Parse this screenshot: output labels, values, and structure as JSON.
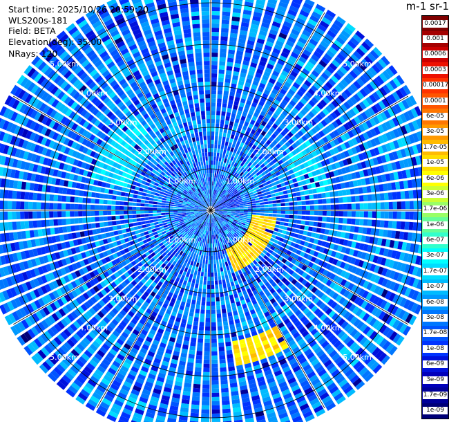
{
  "info": {
    "start_time": "Start time: 2025/10/26 20:59:20",
    "instrument": "WLS200s-181",
    "field": "Field: BETA",
    "elevation": "Elevation(deg): 35.00",
    "nrays": "NRays: 120"
  },
  "colorbar": {
    "title": "m-1 sr-1",
    "labels": [
      "0.0017",
      "0.001",
      "0.0006",
      "0.0003",
      "0.00017",
      "0.0001",
      "6e-05",
      "3e-05",
      "1.7e-05",
      "1e-05",
      "6e-06",
      "3e-06",
      "1.7e-06",
      "1e-06",
      "6e-07",
      "3e-07",
      "1.7e-07",
      "1e-07",
      "6e-08",
      "3e-08",
      "1.7e-08",
      "1e-08",
      "6e-09",
      "3e-09",
      "1.7e-09",
      "1e-09"
    ],
    "colors": [
      "#7f0000",
      "#a50000",
      "#cc0000",
      "#ee1100",
      "#ff3300",
      "#ff5500",
      "#ff7700",
      "#ff9900",
      "#ffbb00",
      "#ffdd00",
      "#ffff00",
      "#ccff33",
      "#99ff66",
      "#66ff99",
      "#33ffcc",
      "#00ffff",
      "#00ddff",
      "#00bbff",
      "#0099ff",
      "#0077ff",
      "#0055ff",
      "#0033ff",
      "#0011dd",
      "#0000bb",
      "#000099",
      "#000077"
    ]
  },
  "chart_data": {
    "type": "heatmap",
    "projection": "polar-ppi",
    "field": "BETA",
    "elevation_deg": 35.0,
    "nrays": 120,
    "range_unit": "km",
    "max_range_km": 5.6,
    "range_rings_km": [
      1,
      2,
      3,
      4,
      5
    ],
    "ring_labels": [
      "1.00km",
      "2.00km",
      "3.00km",
      "4.00km",
      "5.00km"
    ],
    "spoke_angles_deg": [
      0,
      30,
      60,
      90,
      120,
      150,
      180,
      210,
      240,
      270,
      300,
      330
    ],
    "color_scale": "log",
    "vmin": 1e-09,
    "vmax": 0.0017,
    "background_level": 3e-08,
    "features": [
      {
        "kind": "aerosol-arc",
        "azimuth_deg": [
          55,
          80
        ],
        "range_km": [
          2.2,
          2.9
        ],
        "value": 1.7e-07
      },
      {
        "kind": "aerosol-arc",
        "azimuth_deg": [
          285,
          320
        ],
        "range_km": [
          2.0,
          3.0
        ],
        "value": 1.7e-07
      },
      {
        "kind": "aerosol-arc",
        "azimuth_deg": [
          95,
          160
        ],
        "range_km": [
          1.0,
          1.6
        ],
        "value": 1e-05
      },
      {
        "kind": "aerosol-arc",
        "azimuth_deg": [
          150,
          170
        ],
        "range_km": [
          3.2,
          3.8
        ],
        "value": 1e-05
      },
      {
        "kind": "weak-echo",
        "azimuth_deg": [
          45,
          80
        ],
        "range_km": [
          0.0,
          0.8
        ],
        "value": 1e-08
      }
    ]
  }
}
